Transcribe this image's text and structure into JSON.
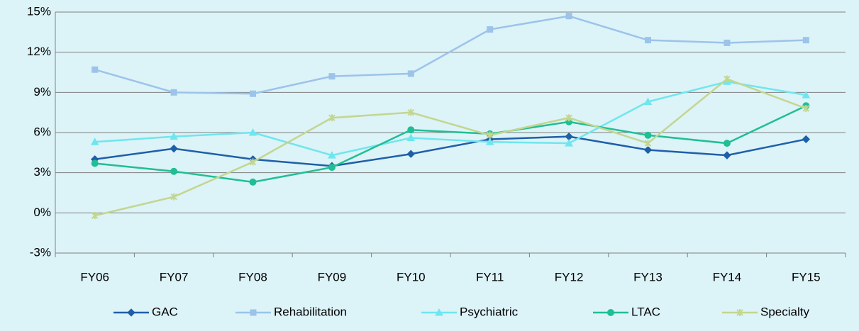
{
  "chart_data": {
    "type": "line",
    "categories": [
      "FY06",
      "FY07",
      "FY08",
      "FY09",
      "FY10",
      "FY11",
      "FY12",
      "FY13",
      "FY14",
      "FY15"
    ],
    "series": [
      {
        "name": "GAC",
        "color": "#1f5fa8",
        "marker": "diamond",
        "values": [
          4.0,
          4.8,
          4.0,
          3.5,
          4.4,
          5.5,
          5.7,
          4.7,
          4.3,
          5.5
        ]
      },
      {
        "name": "Rehabilitation",
        "color": "#9cc3ea",
        "marker": "square",
        "values": [
          10.7,
          9.0,
          8.9,
          10.2,
          10.4,
          13.7,
          14.7,
          12.9,
          12.7,
          12.9
        ]
      },
      {
        "name": "Psychiatric",
        "color": "#6fe6ee",
        "marker": "triangle",
        "values": [
          5.3,
          5.7,
          6.0,
          4.3,
          5.6,
          5.3,
          5.2,
          8.3,
          9.8,
          8.8
        ]
      },
      {
        "name": "LTAC",
        "color": "#1fbf93",
        "marker": "circle",
        "values": [
          3.7,
          3.1,
          2.3,
          3.4,
          6.2,
          5.9,
          6.8,
          5.8,
          5.2,
          8.0
        ]
      },
      {
        "name": "Specialty",
        "color": "#c3d68f",
        "marker": "star",
        "values": [
          -0.2,
          1.2,
          3.8,
          7.1,
          7.5,
          5.8,
          7.1,
          5.2,
          10.0,
          7.8
        ]
      }
    ],
    "ylim": [
      -3,
      15
    ],
    "yticks": [
      {
        "value": -3,
        "label": "-3%"
      },
      {
        "value": 0,
        "label": "0%"
      },
      {
        "value": 3,
        "label": "3%"
      },
      {
        "value": 6,
        "label": "6%"
      },
      {
        "value": 9,
        "label": "9%"
      },
      {
        "value": 12,
        "label": "12%"
      },
      {
        "value": 15,
        "label": "15%"
      }
    ],
    "grid": true,
    "legend": "bottom"
  }
}
